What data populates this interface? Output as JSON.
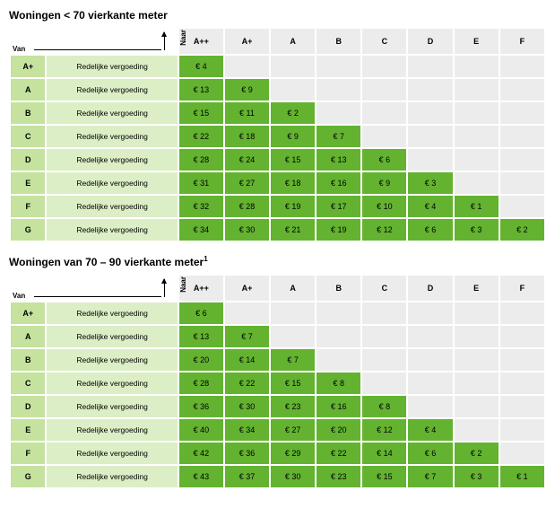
{
  "colors": {
    "header_bg": "#ececec",
    "from_bg": "#c5e29e",
    "desc_bg": "#dceec5",
    "value_bg": "#63b330",
    "empty_bg": "#ececec",
    "text": "#000000"
  },
  "axis": {
    "van": "Van",
    "naar": "Naar"
  },
  "column_headers": [
    "A++",
    "A+",
    "A",
    "B",
    "C",
    "D",
    "E",
    "F"
  ],
  "tables": [
    {
      "title": "Woningen < 70 vierkante meter",
      "title_sup": "",
      "rows": [
        {
          "from": "A+",
          "desc": "Redelijke vergoeding",
          "values": [
            "€ 4",
            "",
            "",
            "",
            "",
            "",
            "",
            ""
          ]
        },
        {
          "from": "A",
          "desc": "Redelijke vergoeding",
          "values": [
            "€ 13",
            "€ 9",
            "",
            "",
            "",
            "",
            "",
            ""
          ]
        },
        {
          "from": "B",
          "desc": "Redelijke vergoeding",
          "values": [
            "€ 15",
            "€ 11",
            "€ 2",
            "",
            "",
            "",
            "",
            ""
          ]
        },
        {
          "from": "C",
          "desc": "Redelijke vergoeding",
          "values": [
            "€ 22",
            "€ 18",
            "€ 9",
            "€ 7",
            "",
            "",
            "",
            ""
          ]
        },
        {
          "from": "D",
          "desc": "Redelijke vergoeding",
          "values": [
            "€ 28",
            "€ 24",
            "€ 15",
            "€ 13",
            "€ 6",
            "",
            "",
            ""
          ]
        },
        {
          "from": "E",
          "desc": "Redelijke vergoeding",
          "values": [
            "€ 31",
            "€ 27",
            "€ 18",
            "€ 16",
            "€ 9",
            "€ 3",
            "",
            ""
          ]
        },
        {
          "from": "F",
          "desc": "Redelijke vergoeding",
          "values": [
            "€ 32",
            "€ 28",
            "€ 19",
            "€ 17",
            "€ 10",
            "€ 4",
            "€ 1",
            ""
          ]
        },
        {
          "from": "G",
          "desc": "Redelijke vergoeding",
          "values": [
            "€ 34",
            "€ 30",
            "€ 21",
            "€ 19",
            "€ 12",
            "€ 6",
            "€ 3",
            "€ 2"
          ]
        }
      ]
    },
    {
      "title": "Woningen van 70 – 90 vierkante meter",
      "title_sup": "1",
      "rows": [
        {
          "from": "A+",
          "desc": "Redelijke vergoeding",
          "values": [
            "€ 6",
            "",
            "",
            "",
            "",
            "",
            "",
            ""
          ]
        },
        {
          "from": "A",
          "desc": "Redelijke vergoeding",
          "values": [
            "€ 13",
            "€ 7",
            "",
            "",
            "",
            "",
            "",
            ""
          ]
        },
        {
          "from": "B",
          "desc": "Redelijke vergoeding",
          "values": [
            "€ 20",
            "€ 14",
            "€ 7",
            "",
            "",
            "",
            "",
            ""
          ]
        },
        {
          "from": "C",
          "desc": "Redelijke vergoeding",
          "values": [
            "€ 28",
            "€ 22",
            "€ 15",
            "€ 8",
            "",
            "",
            "",
            ""
          ]
        },
        {
          "from": "D",
          "desc": "Redelijke vergoeding",
          "values": [
            "€ 36",
            "€ 30",
            "€ 23",
            "€ 16",
            "€ 8",
            "",
            "",
            ""
          ]
        },
        {
          "from": "E",
          "desc": "Redelijke vergoeding",
          "values": [
            "€ 40",
            "€ 34",
            "€ 27",
            "€ 20",
            "€ 12",
            "€ 4",
            "",
            ""
          ]
        },
        {
          "from": "F",
          "desc": "Redelijke vergoeding",
          "values": [
            "€ 42",
            "€ 36",
            "€ 29",
            "€ 22",
            "€ 14",
            "€ 6",
            "€ 2",
            ""
          ]
        },
        {
          "from": "G",
          "desc": "Redelijke vergoeding",
          "values": [
            "€ 43",
            "€ 37",
            "€ 30",
            "€ 23",
            "€ 15",
            "€ 7",
            "€ 3",
            "€ 1"
          ]
        }
      ]
    }
  ]
}
